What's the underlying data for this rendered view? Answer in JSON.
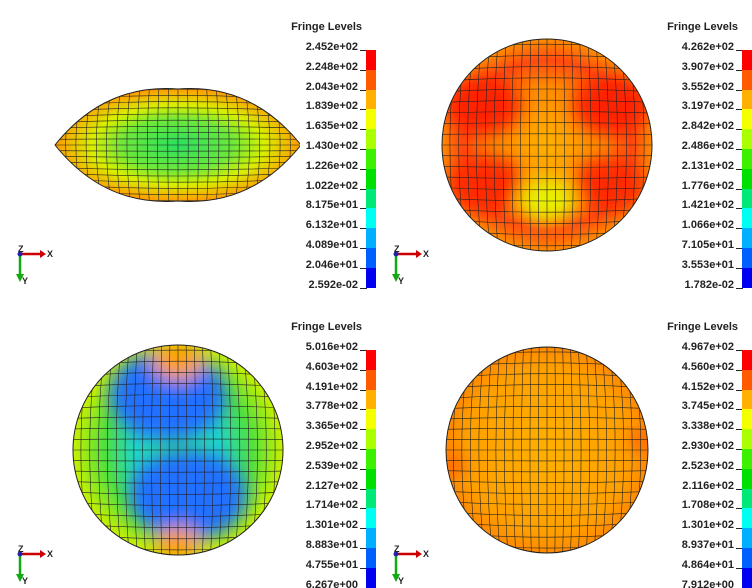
{
  "colorbar": [
    "#ff0000",
    "#ff5a00",
    "#ffb000",
    "#f4ff00",
    "#aaff00",
    "#3cf000",
    "#00e000",
    "#00e878",
    "#00fff0",
    "#00b0ff",
    "#0060ff",
    "#0000f0"
  ],
  "triad": {
    "z_label": "Z",
    "x_label": "X",
    "y_label": "Y"
  },
  "panels": [
    {
      "legend_title": "Fringe Levels",
      "levels": [
        "2.452e+02",
        "2.248e+02",
        "2.043e+02",
        "1.839e+02",
        "1.635e+02",
        "1.430e+02",
        "1.226e+02",
        "1.022e+02",
        "8.175e+01",
        "6.132e+01",
        "4.089e+01",
        "2.046e+01",
        "2.592e-02"
      ]
    },
    {
      "legend_title": "Fringe Levels",
      "levels": [
        "4.262e+02",
        "3.907e+02",
        "3.552e+02",
        "3.197e+02",
        "2.842e+02",
        "2.486e+02",
        "2.131e+02",
        "1.776e+02",
        "1.421e+02",
        "1.066e+02",
        "7.105e+01",
        "3.553e+01",
        "1.782e-02"
      ]
    },
    {
      "legend_title": "Fringe Levels",
      "levels": [
        "5.016e+02",
        "4.603e+02",
        "4.191e+02",
        "3.778e+02",
        "3.365e+02",
        "2.952e+02",
        "2.539e+02",
        "2.127e+02",
        "1.714e+02",
        "1.301e+02",
        "8.883e+01",
        "4.755e+01",
        "6.267e+00"
      ]
    },
    {
      "legend_title": "Fringe Levels",
      "levels": [
        "4.967e+02",
        "4.560e+02",
        "4.152e+02",
        "3.745e+02",
        "3.338e+02",
        "2.930e+02",
        "2.523e+02",
        "2.116e+02",
        "1.708e+02",
        "1.301e+02",
        "8.937e+01",
        "4.864e+01",
        "7.912e+00"
      ]
    }
  ]
}
